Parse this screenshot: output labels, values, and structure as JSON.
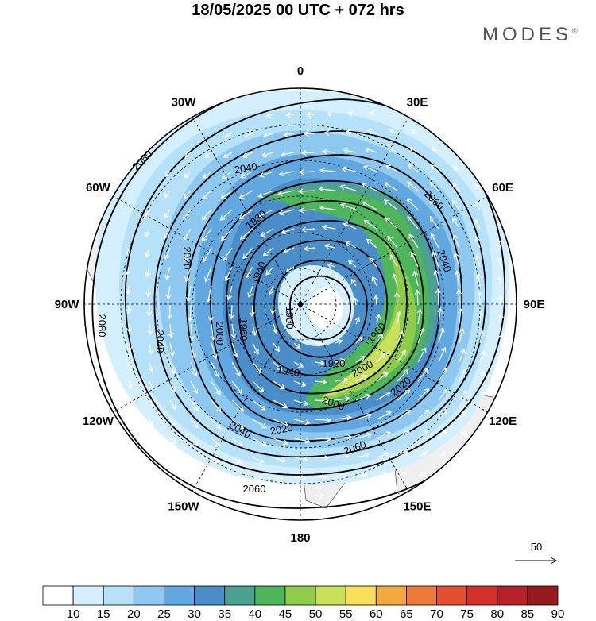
{
  "title": "18/05/2025  00 UTC  + 072 hrs",
  "logo": "MODES",
  "logo_mark": "©",
  "longitude_labels": [
    {
      "text": "0",
      "deg": 0
    },
    {
      "text": "30E",
      "deg": 30
    },
    {
      "text": "60E",
      "deg": 60
    },
    {
      "text": "90E",
      "deg": 90
    },
    {
      "text": "120E",
      "deg": 120
    },
    {
      "text": "150E",
      "deg": 150
    },
    {
      "text": "180",
      "deg": 180
    },
    {
      "text": "150W",
      "deg": 210
    },
    {
      "text": "120W",
      "deg": 240
    },
    {
      "text": "90W",
      "deg": 270
    },
    {
      "text": "60W",
      "deg": 300
    },
    {
      "text": "30W",
      "deg": 330
    }
  ],
  "contour_labels": [
    "1900",
    "1920",
    "1940",
    "1940",
    "1960",
    "1960",
    "1980",
    "2000",
    "2000",
    "2000",
    "2020",
    "2020",
    "2020",
    "2040",
    "2040",
    "2040",
    "2040",
    "2060",
    "2060",
    "2060",
    "2060",
    "2080"
  ],
  "wind_reference": "50",
  "colorbar": {
    "labels": [
      "10",
      "15",
      "20",
      "25",
      "30",
      "35",
      "40",
      "45",
      "50",
      "55",
      "60",
      "65",
      "70",
      "75",
      "80",
      "85",
      "90"
    ],
    "colors": [
      "#ffffff",
      "#d3effd",
      "#b5e1f9",
      "#8cc8ef",
      "#62a8e0",
      "#4a8ec9",
      "#4ba38f",
      "#4db55a",
      "#8fcc4a",
      "#c9e05b",
      "#f8e058",
      "#f2a93e",
      "#ec7a36",
      "#e4502e",
      "#d4302a",
      "#b82027",
      "#961a1e"
    ]
  }
}
